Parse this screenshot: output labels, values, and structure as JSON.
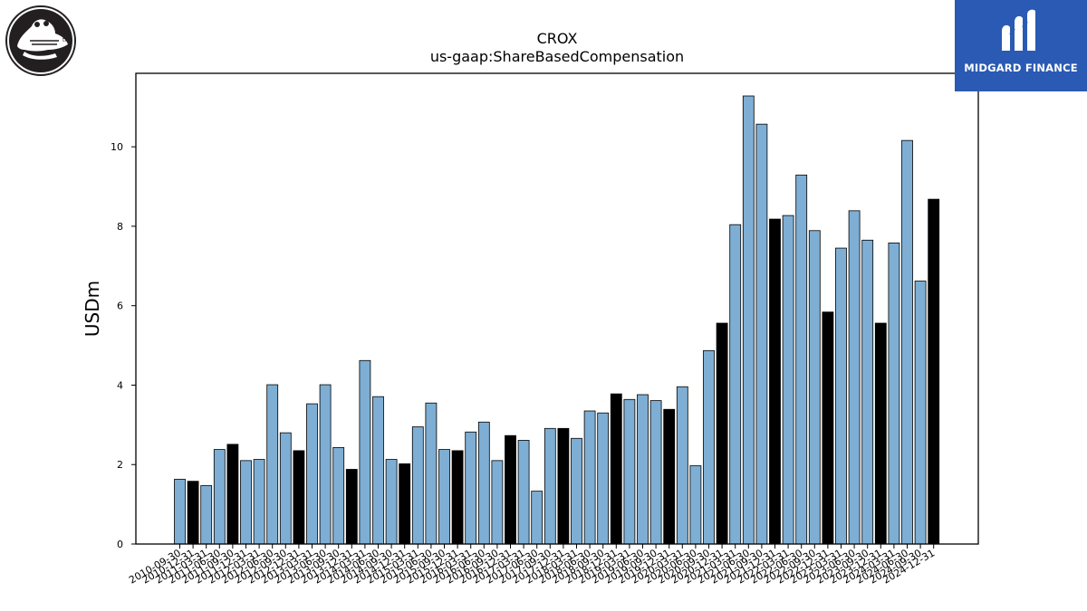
{
  "logos": {
    "company": {
      "icon": "crocodile-logo-icon",
      "mark_text": "tm"
    },
    "brand": {
      "icon": "midgard-finance-logo-icon",
      "name": "MIDGARD FINANCE",
      "color": "#2a5ab3"
    }
  },
  "chart_data": {
    "type": "bar",
    "title": "CROX",
    "subtitle": "us-gaap:ShareBasedCompensation",
    "xlabel": "",
    "ylabel": "USDm",
    "ylim": [
      0,
      11.85
    ],
    "yticks": [
      0,
      2,
      4,
      6,
      8,
      10
    ],
    "grid": false,
    "legend": "none",
    "colors": {
      "quarter": "#7eaed3",
      "year_end": "#000000",
      "edge": "#000000"
    },
    "categories": [
      "2010-09-30",
      "2010-12-31",
      "2011-03-31",
      "2011-06-30",
      "2011-09-30",
      "2011-12-31",
      "2012-03-31",
      "2012-06-30",
      "2012-09-30",
      "2012-12-31",
      "2013-03-31",
      "2013-06-30",
      "2013-09-30",
      "2013-12-31",
      "2014-03-31",
      "2014-06-30",
      "2014-09-30",
      "2014-12-31",
      "2015-03-31",
      "2015-06-30",
      "2015-09-30",
      "2015-12-31",
      "2016-03-31",
      "2016-06-30",
      "2016-09-30",
      "2016-12-31",
      "2017-03-31",
      "2017-06-30",
      "2017-09-30",
      "2017-12-31",
      "2018-03-31",
      "2018-06-30",
      "2018-09-30",
      "2018-12-31",
      "2019-03-31",
      "2019-06-30",
      "2019-09-30",
      "2019-12-31",
      "2020-03-31",
      "2020-06-30",
      "2020-09-30",
      "2020-12-31",
      "2021-03-31",
      "2021-06-30",
      "2021-09-30",
      "2021-12-31",
      "2022-03-31",
      "2022-06-30",
      "2022-09-30",
      "2022-12-31",
      "2023-03-31",
      "2023-06-30",
      "2023-09-30",
      "2023-12-31",
      "2024-03-31",
      "2024-06-30",
      "2024-09-30",
      "2024-12-31"
    ],
    "values": [
      1.63,
      1.58,
      1.47,
      2.38,
      2.51,
      2.1,
      2.13,
      4.01,
      2.8,
      2.35,
      3.53,
      4.01,
      2.43,
      1.88,
      4.62,
      3.71,
      2.13,
      2.02,
      2.95,
      3.55,
      2.38,
      2.35,
      2.82,
      3.07,
      2.1,
      2.73,
      2.61,
      1.33,
      2.91,
      2.91,
      2.66,
      3.35,
      3.3,
      3.78,
      3.64,
      3.76,
      3.61,
      3.39,
      3.96,
      1.97,
      4.87,
      5.56,
      8.04,
      11.28,
      10.57,
      8.18,
      8.27,
      9.29,
      7.89,
      5.84,
      7.45,
      8.39,
      7.65,
      5.56,
      7.58,
      10.16,
      6.62,
      8.68
    ],
    "year_end_flags": [
      0,
      1,
      0,
      0,
      1,
      0,
      0,
      0,
      0,
      1,
      0,
      0,
      0,
      1,
      0,
      0,
      0,
      1,
      0,
      0,
      0,
      1,
      0,
      0,
      0,
      1,
      0,
      0,
      0,
      1,
      0,
      0,
      0,
      1,
      0,
      0,
      0,
      1,
      0,
      0,
      0,
      1,
      0,
      0,
      0,
      1,
      0,
      0,
      0,
      1,
      0,
      0,
      0,
      1,
      0,
      0,
      0,
      1
    ]
  }
}
